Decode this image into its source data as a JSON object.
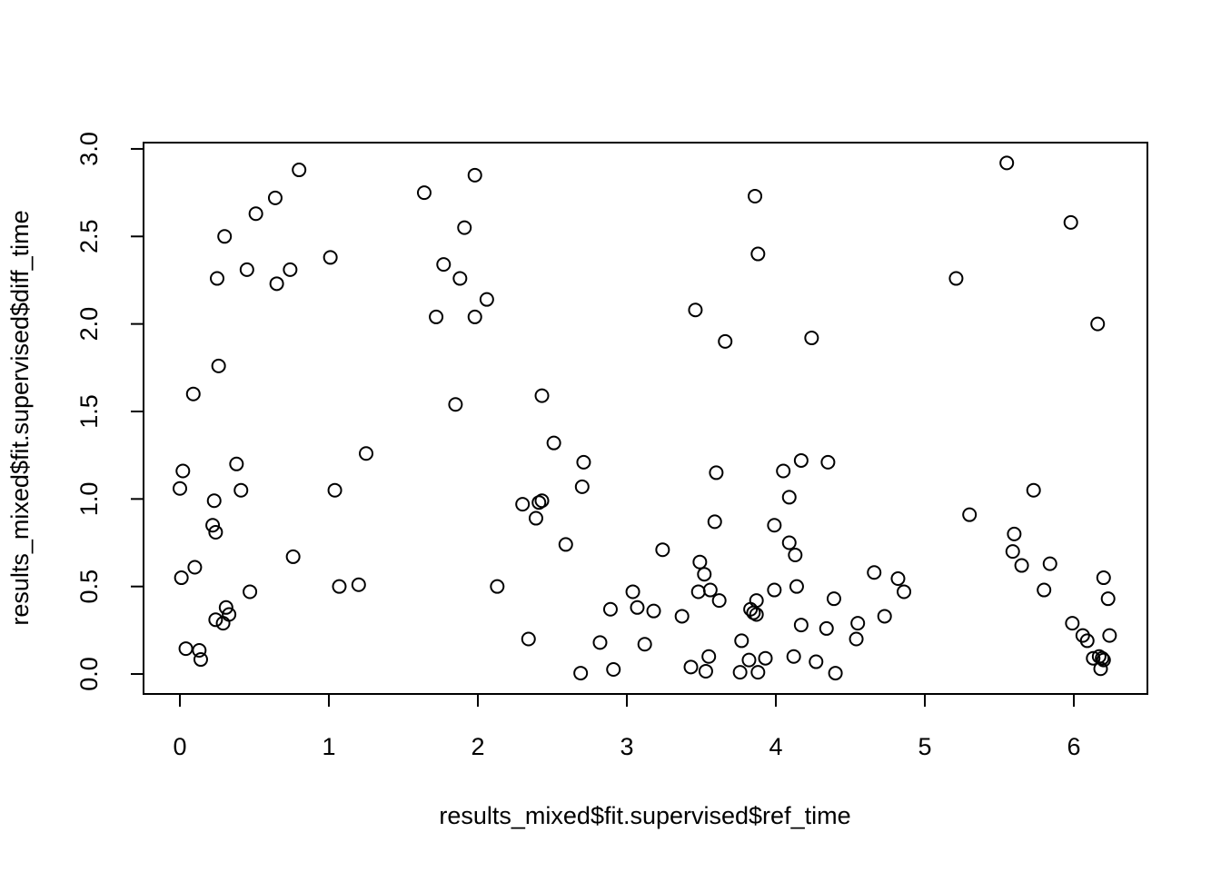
{
  "chart_data": {
    "type": "scatter",
    "x_label": "results_mixed$fit.supervised$ref_time",
    "y_label": "results_mixed$fit.supervised$diff_time",
    "color": "#000000",
    "xlim": [
      -0.244,
      6.494
    ],
    "ylim": [
      -0.114,
      3.036
    ],
    "xticks": [
      0,
      1,
      2,
      3,
      4,
      5,
      6
    ],
    "yticks": [
      {
        "value": 0,
        "label": "0.0"
      },
      0.5,
      {
        "value": 1,
        "label": "1.0"
      },
      1.5,
      {
        "value": 2,
        "label": "2.0"
      },
      2.5,
      {
        "value": 3,
        "label": "3.0"
      }
    ],
    "x": [
      0.0,
      0.02,
      0.01,
      0.04,
      0.09,
      0.1,
      0.13,
      0.14,
      0.22,
      0.23,
      0.24,
      0.24,
      0.25,
      0.26,
      0.29,
      0.3,
      0.31,
      0.33,
      0.38,
      0.41,
      0.45,
      0.47,
      0.51,
      0.64,
      0.65,
      0.74,
      0.76,
      0.8,
      1.01,
      1.04,
      1.07,
      1.2,
      1.25,
      1.64,
      1.72,
      1.77,
      1.85,
      1.88,
      1.91,
      1.98,
      1.98,
      2.06,
      2.13,
      2.3,
      2.34,
      2.39,
      2.41,
      2.43,
      2.43,
      2.51,
      2.59,
      2.7,
      2.71,
      2.69,
      2.82,
      2.89,
      2.91,
      3.04,
      3.07,
      3.12,
      3.18,
      3.24,
      3.37,
      3.43,
      3.46,
      3.48,
      3.49,
      3.52,
      3.53,
      3.55,
      3.56,
      3.6,
      3.59,
      3.62,
      3.66,
      3.76,
      3.77,
      3.82,
      3.83,
      3.85,
      3.86,
      3.87,
      3.87,
      3.88,
      3.88,
      3.93,
      3.99,
      3.99,
      4.05,
      4.09,
      4.09,
      4.13,
      4.12,
      4.14,
      4.17,
      4.17,
      4.24,
      4.27,
      4.34,
      4.35,
      4.39,
      4.4,
      4.54,
      4.55,
      4.66,
      4.73,
      4.82,
      4.86,
      5.21,
      5.3,
      5.55,
      5.59,
      5.6,
      5.65,
      5.73,
      5.8,
      5.84,
      5.98,
      5.99,
      6.06,
      6.09,
      6.13,
      6.16,
      6.17,
      6.18,
      6.19,
      6.2,
      6.2,
      6.23,
      6.24
    ],
    "values": [
      1.06,
      1.16,
      0.55,
      0.145,
      1.6,
      0.61,
      0.135,
      0.083,
      0.85,
      0.99,
      0.81,
      0.31,
      2.26,
      1.76,
      0.29,
      2.5,
      0.38,
      0.34,
      1.2,
      1.05,
      2.31,
      0.47,
      2.63,
      2.72,
      2.23,
      2.31,
      0.67,
      2.88,
      2.38,
      1.05,
      0.5,
      0.51,
      1.26,
      2.75,
      2.04,
      2.34,
      1.54,
      2.26,
      2.55,
      2.85,
      2.04,
      2.14,
      0.5,
      0.97,
      0.2,
      0.89,
      0.98,
      0.99,
      1.59,
      1.32,
      0.74,
      1.07,
      1.21,
      0.005,
      0.18,
      0.37,
      0.026,
      0.47,
      0.38,
      0.17,
      0.36,
      0.71,
      0.33,
      0.04,
      2.08,
      0.47,
      0.64,
      0.57,
      0.016,
      0.1,
      0.48,
      1.15,
      0.87,
      0.42,
      1.9,
      0.01,
      0.19,
      0.08,
      0.37,
      0.35,
      2.73,
      0.42,
      0.34,
      2.4,
      0.01,
      0.09,
      0.85,
      0.48,
      1.16,
      1.01,
      0.75,
      0.68,
      0.1,
      0.5,
      1.22,
      0.28,
      1.92,
      0.07,
      0.26,
      1.21,
      0.43,
      0.005,
      0.2,
      0.29,
      0.58,
      0.33,
      0.545,
      0.47,
      2.26,
      0.91,
      2.92,
      0.7,
      0.8,
      0.62,
      1.05,
      0.48,
      0.63,
      2.58,
      0.29,
      0.22,
      0.19,
      0.09,
      2.0,
      0.1,
      0.03,
      0.09,
      0.08,
      0.55,
      0.43,
      0.22
    ]
  }
}
